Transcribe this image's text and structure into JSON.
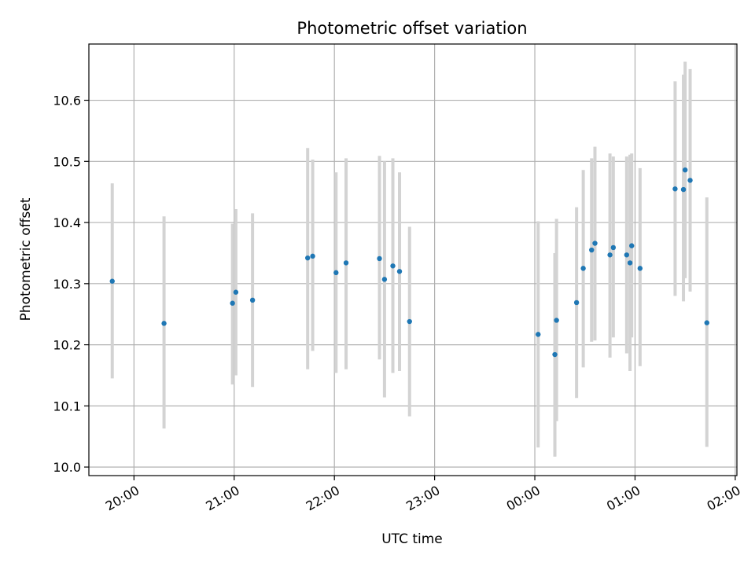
{
  "chart_data": {
    "type": "scatter",
    "title": "Photometric offset variation",
    "xlabel": "UTC time",
    "ylabel": "Photometric offset",
    "grid": true,
    "legend": "none",
    "x_axis": "time",
    "xlim": [
      "19:33",
      "02:01"
    ],
    "ylim": [
      9.986,
      10.692
    ],
    "x_ticks": [
      "20:00",
      "21:00",
      "22:00",
      "23:00",
      "00:00",
      "01:00",
      "02:00"
    ],
    "y_ticks": [
      10.0,
      10.1,
      10.2,
      10.3,
      10.4,
      10.5,
      10.6
    ],
    "colors": {
      "point": "#1f77b4",
      "errorbar": "#d3d3d3",
      "grid": "#b0b0b0"
    },
    "series": [
      {
        "points": [
          {
            "x": "19:47",
            "y": 10.304,
            "low": 10.145,
            "high": 10.464
          },
          {
            "x": "20:18",
            "y": 10.235,
            "low": 10.063,
            "high": 10.41
          },
          {
            "x": "20:59",
            "y": 10.268,
            "low": 10.135,
            "high": 10.398
          },
          {
            "x": "21:01",
            "y": 10.286,
            "low": 10.15,
            "high": 10.422
          },
          {
            "x": "21:11",
            "y": 10.273,
            "low": 10.131,
            "high": 10.415
          },
          {
            "x": "21:44",
            "y": 10.342,
            "low": 10.16,
            "high": 10.522
          },
          {
            "x": "21:47",
            "y": 10.345,
            "low": 10.19,
            "high": 10.503
          },
          {
            "x": "22:01",
            "y": 10.318,
            "low": 10.154,
            "high": 10.482
          },
          {
            "x": "22:07",
            "y": 10.334,
            "low": 10.16,
            "high": 10.505
          },
          {
            "x": "22:27",
            "y": 10.341,
            "low": 10.176,
            "high": 10.509
          },
          {
            "x": "22:30",
            "y": 10.307,
            "low": 10.114,
            "high": 10.5
          },
          {
            "x": "22:35",
            "y": 10.329,
            "low": 10.154,
            "high": 10.505
          },
          {
            "x": "22:39",
            "y": 10.32,
            "low": 10.157,
            "high": 10.482
          },
          {
            "x": "22:45",
            "y": 10.238,
            "low": 10.083,
            "high": 10.393
          },
          {
            "x": "00:02",
            "y": 10.217,
            "low": 10.032,
            "high": 10.402
          },
          {
            "x": "00:12",
            "y": 10.184,
            "low": 10.017,
            "high": 10.35
          },
          {
            "x": "00:13",
            "y": 10.24,
            "low": 10.075,
            "high": 10.406
          },
          {
            "x": "00:25",
            "y": 10.269,
            "low": 10.113,
            "high": 10.425
          },
          {
            "x": "00:29",
            "y": 10.325,
            "low": 10.163,
            "high": 10.486
          },
          {
            "x": "00:34",
            "y": 10.355,
            "low": 10.205,
            "high": 10.505
          },
          {
            "x": "00:36",
            "y": 10.366,
            "low": 10.207,
            "high": 10.524
          },
          {
            "x": "00:45",
            "y": 10.347,
            "low": 10.179,
            "high": 10.513
          },
          {
            "x": "00:47",
            "y": 10.359,
            "low": 10.212,
            "high": 10.508
          },
          {
            "x": "00:55",
            "y": 10.347,
            "low": 10.186,
            "high": 10.508
          },
          {
            "x": "00:57",
            "y": 10.334,
            "low": 10.157,
            "high": 10.511
          },
          {
            "x": "00:58",
            "y": 10.362,
            "low": 10.212,
            "high": 10.513
          },
          {
            "x": "01:03",
            "y": 10.325,
            "low": 10.165,
            "high": 10.489
          },
          {
            "x": "01:24",
            "y": 10.455,
            "low": 10.28,
            "high": 10.631
          },
          {
            "x": "01:29",
            "y": 10.454,
            "low": 10.271,
            "high": 10.642
          },
          {
            "x": "01:30",
            "y": 10.486,
            "low": 10.309,
            "high": 10.663
          },
          {
            "x": "01:33",
            "y": 10.469,
            "low": 10.287,
            "high": 10.651
          },
          {
            "x": "01:43",
            "y": 10.236,
            "low": 10.033,
            "high": 10.441
          }
        ]
      }
    ]
  }
}
